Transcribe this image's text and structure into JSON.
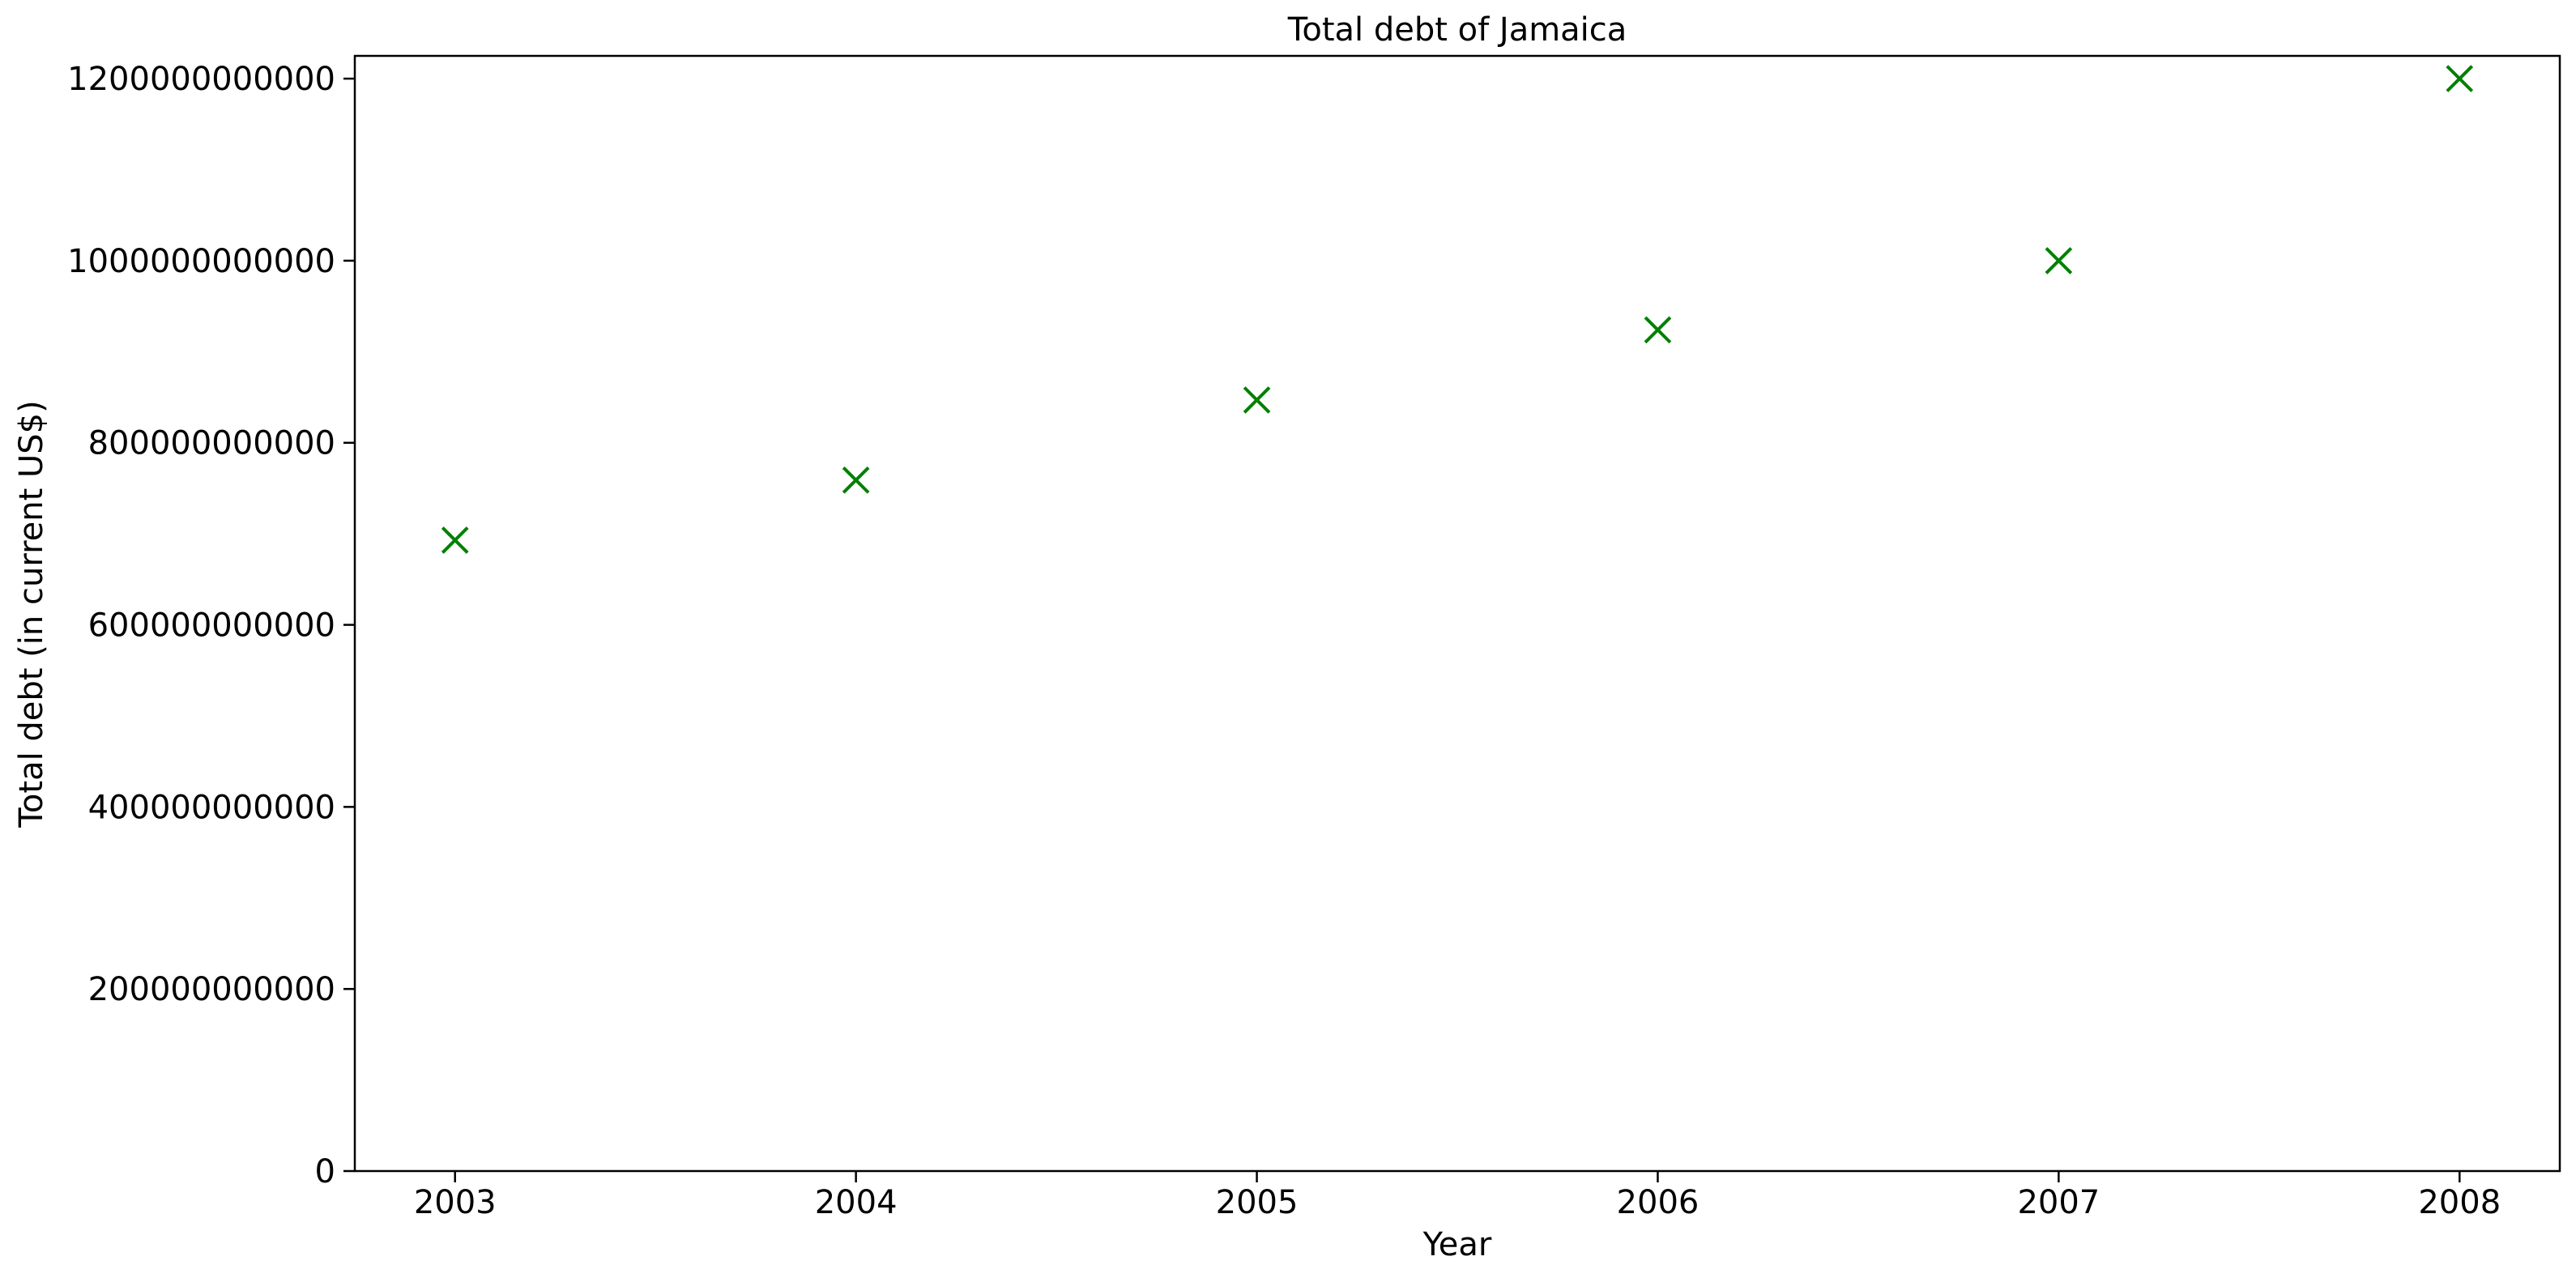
{
  "chart_data": {
    "type": "scatter",
    "title": "Total debt of Jamaica",
    "xlabel": "Year",
    "ylabel": "Total debt (in current US$)",
    "x": [
      2003,
      2004,
      2005,
      2006,
      2007,
      2008
    ],
    "series": [
      {
        "values": [
          693000000000,
          759000000000,
          847000000000,
          924000000000,
          1000000000000,
          1200000000000
        ],
        "color": "#008000",
        "marker": "x"
      }
    ],
    "xlim": [
      2002.75,
      2008.25
    ],
    "ylim": [
      0,
      1225000000000
    ],
    "x_ticks": [
      "2003",
      "2004",
      "2005",
      "2006",
      "2007",
      "2008"
    ],
    "y_ticks": [
      "0",
      "200000000000",
      "400000000000",
      "600000000000",
      "800000000000",
      "1000000000000",
      "1200000000000"
    ],
    "grid": false,
    "legend": "none"
  }
}
